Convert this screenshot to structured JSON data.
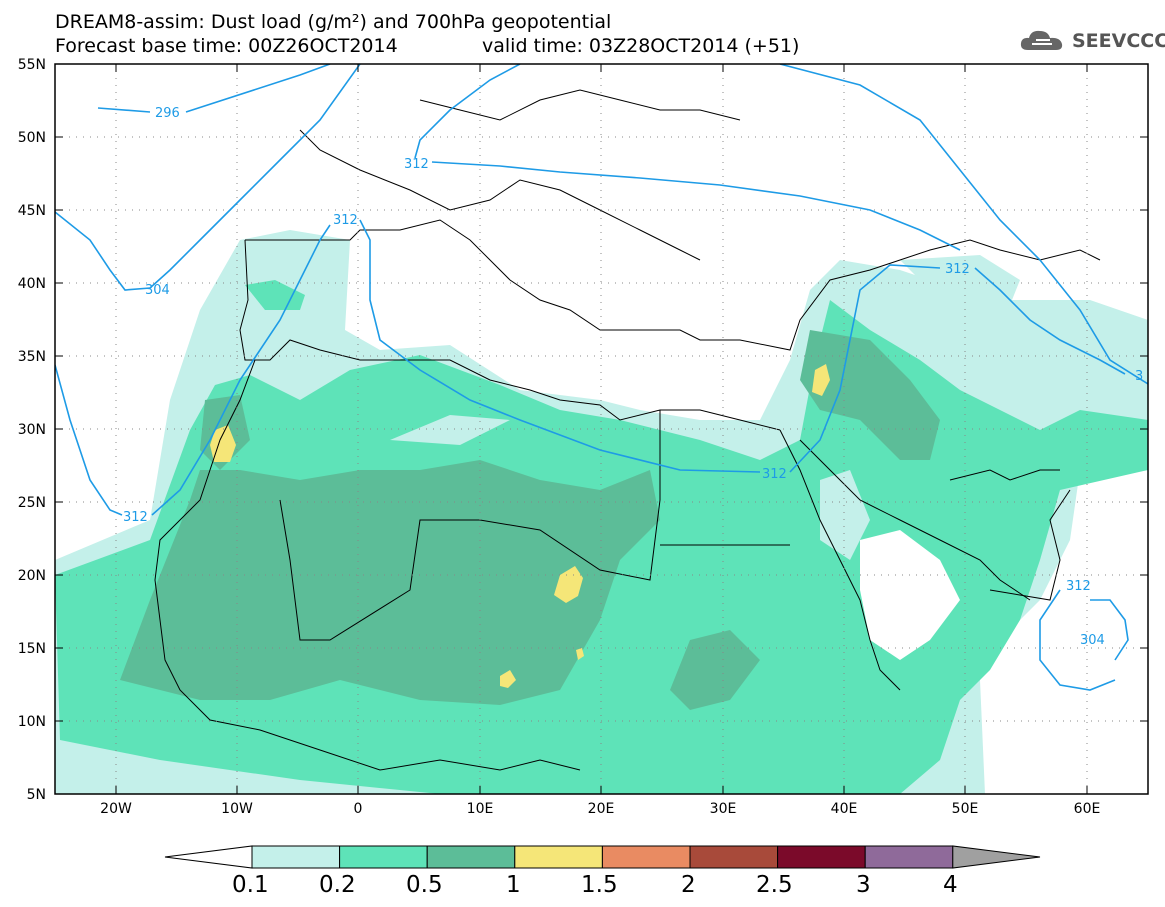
{
  "header": {
    "title_line1": "DREAM8-assim: Dust load (g/m²) and 700hPa geopotential",
    "title_line2": "Forecast base time: 00Z26OCT2014",
    "valid_time": "valid time: 03Z28OCT2014 (+51)",
    "logo_text": "SEEVCCC"
  },
  "axes": {
    "lon_labels": [
      "20W",
      "10W",
      "0",
      "10E",
      "20E",
      "30E",
      "40E",
      "50E",
      "60E"
    ],
    "lat_labels": [
      "55N",
      "50N",
      "45N",
      "40N",
      "35N",
      "30N",
      "25N",
      "20N",
      "15N",
      "10N",
      "5N"
    ]
  },
  "contour_labels": {
    "c296": "296",
    "c304a": "304",
    "c304b": "304",
    "c312a": "312",
    "c312b": "312",
    "c312c": "312",
    "c312d": "312",
    "c312e": "312",
    "c312f": "312",
    "c3": "3"
  },
  "colorbar": {
    "labels": [
      "0.1",
      "0.2",
      "0.5",
      "1",
      "1.5",
      "2",
      "2.5",
      "3",
      "4"
    ],
    "colors": [
      "#ffffff",
      "#c4f0ea",
      "#5ee3b8",
      "#5cbd98",
      "#f5e678",
      "#e98b62",
      "#a84a3a",
      "#7b0a2a",
      "#8f6a9a",
      "#a0a0a0"
    ]
  }
}
